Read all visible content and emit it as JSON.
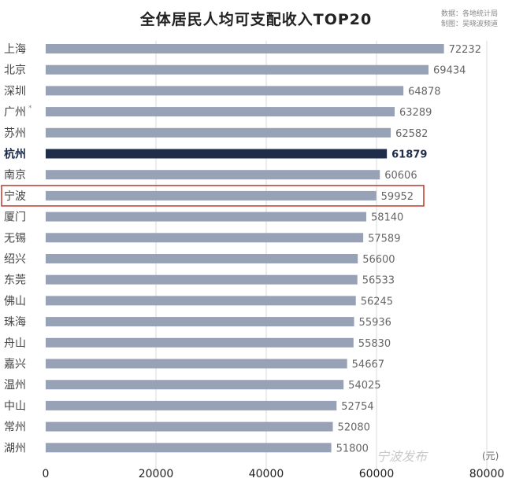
{
  "chart_data": {
    "type": "bar",
    "orientation": "horizontal",
    "title": "全体居民人均可支配收入TOP20",
    "source_lines": [
      "数据：各地统计局",
      "制图：吴晓波频道"
    ],
    "categories": [
      "上海",
      "北京",
      "深圳",
      "广州",
      "苏州",
      "杭州",
      "南京",
      "宁波",
      "厦门",
      "无锡",
      "绍兴",
      "东莞",
      "佛山",
      "珠海",
      "舟山",
      "嘉兴",
      "温州",
      "中山",
      "常州",
      "湖州"
    ],
    "values": [
      72232,
      69434,
      64878,
      63289,
      62582,
      61879,
      60606,
      59952,
      58140,
      57589,
      56600,
      56533,
      56245,
      55936,
      55830,
      54667,
      54025,
      52754,
      52080,
      51800
    ],
    "highlight_fill": "杭州",
    "highlight_box": "宁波",
    "guangzhou_mark": "*",
    "xlim": [
      0,
      80000
    ],
    "xticks": [
      "0",
      "20000",
      "40000",
      "60000",
      "80000"
    ],
    "unit": "(元)",
    "grid": "vertical",
    "colors": {
      "bar": "#98a2b6",
      "bar_highlight": "#1f2d4a",
      "box": "#c0392b",
      "grid": "#d9d9d9"
    },
    "watermark": "宁波发布"
  }
}
